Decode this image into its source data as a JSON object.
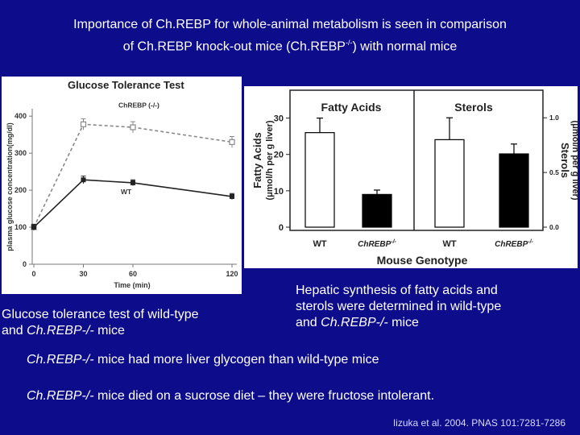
{
  "title": {
    "line1": "Importance of Ch.REBP for whole-animal metabolism is seen in comparison",
    "line2_prefix": "of Ch.REBP knock-out mice (Ch.REBP",
    "line2_sup": "-/-",
    "line2_suffix": ") with normal mice"
  },
  "left_caption": {
    "line1": "Glucose tolerance test of wild-type",
    "line2_prefix": "and ",
    "line2_em": "Ch.REBP-/-",
    "line2_suffix": " mice"
  },
  "right_caption": {
    "line1": "Hepatic synthesis of fatty acids and",
    "line2": "sterols were determined in wild-type",
    "line3_prefix": "and ",
    "line3_em": "Ch.REBP-/-",
    "line3_suffix": " mice"
  },
  "bullets": [
    {
      "em": "Ch.REBP-/-",
      "text": " mice had more liver glycogen than wild-type mice"
    },
    {
      "em": "Ch.REBP-/-",
      "text": " mice died on a sucrose diet – they were fructose intolerant."
    }
  ],
  "citation": "Iizuka et al. 2004. PNAS 101:7281-7286",
  "colors": {
    "background": "#0d0d8c",
    "panel": "#ffffff",
    "ko_series": "#888888",
    "wt_series": "#222222"
  },
  "chart_data": [
    {
      "type": "line",
      "title": "Glucose Tolerance Test",
      "xlabel": "Time (min)",
      "ylabel": "plasma glucose concentration(mg/dl)",
      "x": [
        0,
        30,
        60,
        120
      ],
      "x_tick_labels": [
        "0",
        "30",
        "60",
        "120"
      ],
      "y_ticks": [
        0,
        100,
        200,
        300,
        400
      ],
      "ylim": [
        0,
        420
      ],
      "series": [
        {
          "name": "ChREBP (-/-)",
          "values": [
            100,
            378,
            370,
            330
          ],
          "errors": [
            8,
            15,
            15,
            15
          ],
          "style": "dashed"
        },
        {
          "name": "WT",
          "values": [
            100,
            228,
            220,
            183
          ],
          "errors": [
            8,
            10,
            8,
            8
          ],
          "style": "solid"
        }
      ]
    },
    {
      "type": "bar",
      "title": "Fatty Acids",
      "ylabel_line1": "Fatty Acids",
      "ylabel_line2": "(μmol/h per g liver)",
      "categories": [
        "WT",
        "ChREBP"
      ],
      "category_sup": [
        "",
        "-/-"
      ],
      "values": [
        26,
        9
      ],
      "errors": [
        4,
        1.2
      ],
      "y_ticks": [
        0,
        10,
        20,
        30
      ],
      "ylim": [
        0,
        37
      ]
    },
    {
      "type": "bar",
      "title": "Sterols",
      "ylabel_line1": "Sterols",
      "ylabel_line2": "(μmol/h per g liver)",
      "categories": [
        "WT",
        "ChREBP"
      ],
      "category_sup": [
        "",
        "-/-"
      ],
      "values": [
        0.8,
        0.67
      ],
      "errors": [
        0.2,
        0.09
      ],
      "y_ticks": [
        0.0,
        0.5,
        1.0
      ],
      "y_tick_labels": [
        "0.0",
        "0.5",
        "1.0"
      ],
      "ylim": [
        0,
        1.23
      ]
    }
  ],
  "shared_xlabel": "Mouse Genotype"
}
